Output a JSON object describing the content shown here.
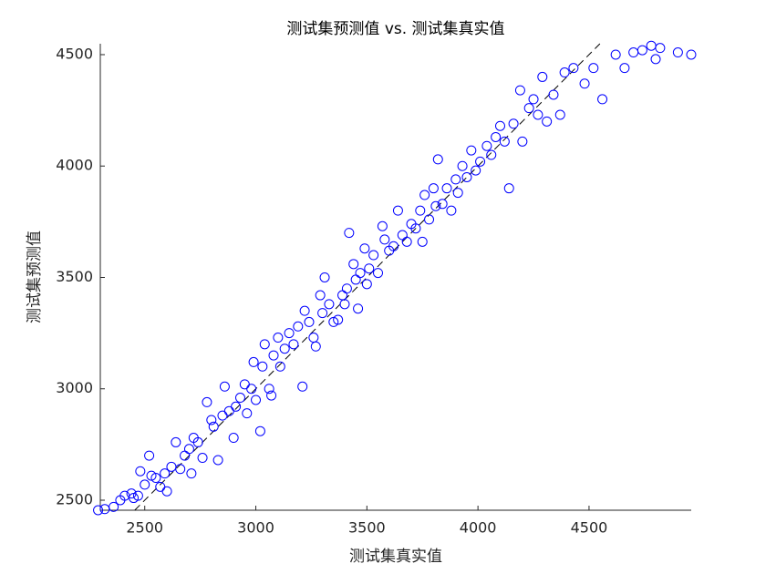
{
  "chart_data": {
    "type": "scatter",
    "title": "测试集预测值 vs. 测试集真实值",
    "xlabel": "测试集真实值",
    "ylabel": "测试集预测值",
    "x": [
      2290,
      2320,
      2360,
      2390,
      2410,
      2440,
      2450,
      2470,
      2480,
      2500,
      2520,
      2530,
      2550,
      2570,
      2590,
      2600,
      2620,
      2640,
      2660,
      2680,
      2700,
      2710,
      2720,
      2740,
      2760,
      2780,
      2800,
      2810,
      2830,
      2850,
      2860,
      2880,
      2900,
      2910,
      2930,
      2950,
      2960,
      2980,
      2990,
      3000,
      3020,
      3030,
      3040,
      3060,
      3070,
      3080,
      3100,
      3110,
      3130,
      3150,
      3170,
      3190,
      3210,
      3220,
      3240,
      3260,
      3270,
      3290,
      3300,
      3310,
      3330,
      3350,
      3370,
      3390,
      3400,
      3410,
      3420,
      3440,
      3450,
      3460,
      3470,
      3490,
      3500,
      3510,
      3530,
      3550,
      3570,
      3580,
      3600,
      3620,
      3640,
      3660,
      3680,
      3700,
      3720,
      3740,
      3750,
      3760,
      3780,
      3800,
      3810,
      3820,
      3840,
      3860,
      3880,
      3900,
      3910,
      3930,
      3950,
      3970,
      3990,
      4010,
      4040,
      4060,
      4080,
      4100,
      4120,
      4140,
      4160,
      4190,
      4200,
      4230,
      4250,
      4270,
      4290,
      4310,
      4340,
      4370,
      4390,
      4430,
      4480,
      4520,
      4560,
      4620,
      4660,
      4700,
      4740,
      4780,
      4800,
      4820,
      4900,
      4960
    ],
    "values": [
      2455,
      2460,
      2470,
      2500,
      2520,
      2530,
      2510,
      2520,
      2630,
      2570,
      2700,
      2610,
      2600,
      2560,
      2620,
      2540,
      2650,
      2760,
      2640,
      2700,
      2730,
      2620,
      2780,
      2760,
      2690,
      2940,
      2860,
      2830,
      2680,
      2880,
      3010,
      2900,
      2780,
      2920,
      2960,
      3020,
      2890,
      3000,
      3120,
      2950,
      2810,
      3100,
      3200,
      3000,
      2970,
      3150,
      3230,
      3100,
      3180,
      3250,
      3200,
      3280,
      3010,
      3350,
      3300,
      3230,
      3190,
      3420,
      3340,
      3500,
      3380,
      3300,
      3310,
      3420,
      3380,
      3450,
      3700,
      3560,
      3490,
      3360,
      3520,
      3630,
      3470,
      3540,
      3600,
      3520,
      3730,
      3670,
      3620,
      3640,
      3800,
      3690,
      3660,
      3740,
      3720,
      3800,
      3660,
      3870,
      3760,
      3900,
      3820,
      4030,
      3830,
      3900,
      3800,
      3940,
      3880,
      4000,
      3950,
      4070,
      3980,
      4020,
      4090,
      4050,
      4130,
      4180,
      4110,
      3900,
      4190,
      4340,
      4110,
      4260,
      4300,
      4230,
      4400,
      4200,
      4320,
      4230,
      4420,
      4440,
      4370,
      4440,
      4300,
      4500,
      4440,
      4510,
      4520,
      4540,
      4480,
      4530,
      4510,
      4500
    ],
    "color": "#0000ff",
    "xlim": [
      2300,
      4960
    ],
    "ylim": [
      2455,
      4549
    ],
    "xticks": [
      2500,
      3000,
      3500,
      4000,
      4500
    ],
    "yticks": [
      2500,
      3000,
      3500,
      4000,
      4500
    ]
  }
}
